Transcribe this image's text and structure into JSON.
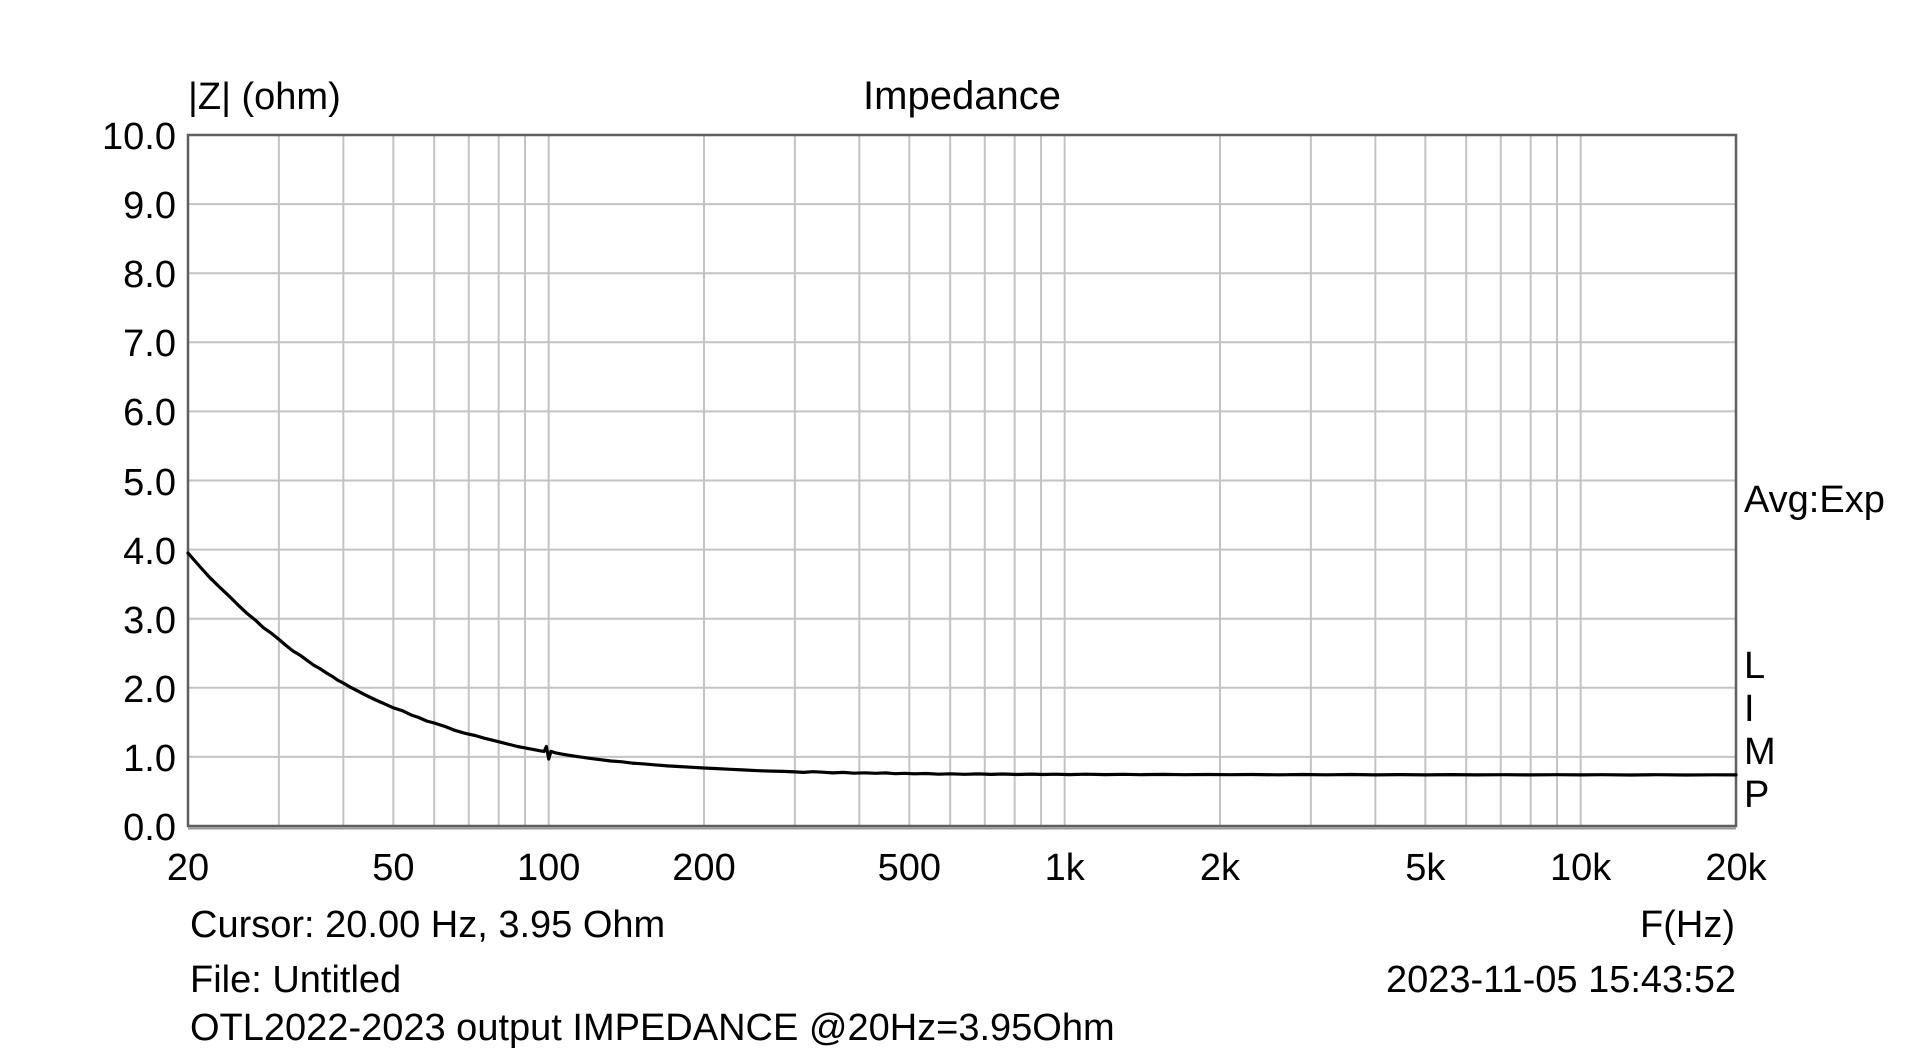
{
  "header": {
    "y_axis_unit": "|Z| (ohm)",
    "title": "Impedance"
  },
  "side_panel": {
    "avg_mode": "Avg:Exp",
    "app_name_letters": [
      "L",
      "I",
      "M",
      "P"
    ]
  },
  "footer": {
    "cursor_readout": "Cursor: 20.00 Hz, 3.95 Ohm",
    "x_axis_unit": "F(Hz)",
    "file_label": "File: Untitled",
    "timestamp": "2023-11-05 15:43:52",
    "comment": "OTL2022-2023 output IMPEDANCE @20Hz=3.95Ohm"
  },
  "colors": {
    "background": "#ffffff",
    "text": "#000000",
    "grid": "#c3c3c3",
    "plot_border": "#5f5f5f",
    "curve": "#000000"
  },
  "chart_data": {
    "type": "line",
    "title": "Impedance",
    "xlabel": "F(Hz)",
    "ylabel": "|Z| (ohm)",
    "xscale": "log",
    "xlim": [
      20,
      20000
    ],
    "ylim": [
      0,
      10
    ],
    "grid": true,
    "legend": "none",
    "x_ticks": [
      {
        "value": 20,
        "label": "20"
      },
      {
        "value": 50,
        "label": "50"
      },
      {
        "value": 100,
        "label": "100"
      },
      {
        "value": 200,
        "label": "200"
      },
      {
        "value": 500,
        "label": "500"
      },
      {
        "value": 1000,
        "label": "1k"
      },
      {
        "value": 2000,
        "label": "2k"
      },
      {
        "value": 5000,
        "label": "5k"
      },
      {
        "value": 10000,
        "label": "10k"
      },
      {
        "value": 20000,
        "label": "20k"
      }
    ],
    "y_ticks": [
      {
        "value": 10,
        "label": "10.0"
      },
      {
        "value": 9,
        "label": "9.0"
      },
      {
        "value": 8,
        "label": "8.0"
      },
      {
        "value": 7,
        "label": "7.0"
      },
      {
        "value": 6,
        "label": "6.0"
      },
      {
        "value": 5,
        "label": "5.0"
      },
      {
        "value": 4,
        "label": "4.0"
      },
      {
        "value": 3,
        "label": "3.0"
      },
      {
        "value": 2,
        "label": "2.0"
      },
      {
        "value": 1,
        "label": "1.0"
      },
      {
        "value": 0,
        "label": "0.0"
      }
    ],
    "annotations": [
      {
        "text": "notch artifact at 100 Hz dipping to ~0.97 ohm"
      },
      {
        "text": "curve starts at 20 Hz / 3.95 ohm and flattens near 0.74 ohm above 500 Hz"
      }
    ],
    "series": [
      {
        "name": "Impedance magnitude |Z|",
        "points": [
          [
            20,
            3.95
          ],
          [
            21,
            3.77
          ],
          [
            22,
            3.6
          ],
          [
            23,
            3.46
          ],
          [
            24,
            3.33
          ],
          [
            25,
            3.2
          ],
          [
            26,
            3.08
          ],
          [
            27,
            2.98
          ],
          [
            28,
            2.87
          ],
          [
            29,
            2.79
          ],
          [
            30,
            2.7
          ],
          [
            31,
            2.61
          ],
          [
            32,
            2.53
          ],
          [
            33,
            2.47
          ],
          [
            34,
            2.4
          ],
          [
            35,
            2.33
          ],
          [
            36,
            2.28
          ],
          [
            37,
            2.22
          ],
          [
            38,
            2.17
          ],
          [
            39,
            2.11
          ],
          [
            40,
            2.07
          ],
          [
            41,
            2.02
          ],
          [
            42,
            1.98
          ],
          [
            44,
            1.9
          ],
          [
            46,
            1.83
          ],
          [
            48,
            1.77
          ],
          [
            50,
            1.71
          ],
          [
            52,
            1.67
          ],
          [
            54,
            1.61
          ],
          [
            56,
            1.57
          ],
          [
            58,
            1.52
          ],
          [
            60,
            1.49
          ],
          [
            63,
            1.44
          ],
          [
            66,
            1.38
          ],
          [
            69,
            1.34
          ],
          [
            72,
            1.31
          ],
          [
            75,
            1.27
          ],
          [
            78,
            1.24
          ],
          [
            81,
            1.21
          ],
          [
            84,
            1.18
          ],
          [
            87,
            1.15
          ],
          [
            90,
            1.13
          ],
          [
            93,
            1.11
          ],
          [
            96,
            1.09
          ],
          [
            98,
            1.08
          ],
          [
            99,
            1.15
          ],
          [
            100,
            0.97
          ],
          [
            101,
            1.08
          ],
          [
            103,
            1.06
          ],
          [
            106,
            1.04
          ],
          [
            110,
            1.02
          ],
          [
            115,
            1.0
          ],
          [
            120,
            0.98
          ],
          [
            126,
            0.96
          ],
          [
            132,
            0.94
          ],
          [
            138,
            0.93
          ],
          [
            145,
            0.91
          ],
          [
            152,
            0.9
          ],
          [
            160,
            0.885
          ],
          [
            170,
            0.87
          ],
          [
            180,
            0.86
          ],
          [
            190,
            0.85
          ],
          [
            200,
            0.84
          ],
          [
            212,
            0.83
          ],
          [
            225,
            0.82
          ],
          [
            240,
            0.81
          ],
          [
            255,
            0.8
          ],
          [
            270,
            0.795
          ],
          [
            285,
            0.79
          ],
          [
            300,
            0.783
          ],
          [
            312,
            0.775
          ],
          [
            325,
            0.786
          ],
          [
            340,
            0.778
          ],
          [
            355,
            0.768
          ],
          [
            372,
            0.776
          ],
          [
            390,
            0.764
          ],
          [
            410,
            0.77
          ],
          [
            430,
            0.762
          ],
          [
            450,
            0.768
          ],
          [
            470,
            0.757
          ],
          [
            490,
            0.763
          ],
          [
            510,
            0.755
          ],
          [
            540,
            0.76
          ],
          [
            570,
            0.75
          ],
          [
            600,
            0.756
          ],
          [
            640,
            0.748
          ],
          [
            680,
            0.754
          ],
          [
            720,
            0.747
          ],
          [
            760,
            0.752
          ],
          [
            810,
            0.746
          ],
          [
            860,
            0.751
          ],
          [
            910,
            0.745
          ],
          [
            960,
            0.75
          ],
          [
            1020,
            0.744
          ],
          [
            1100,
            0.749
          ],
          [
            1200,
            0.744
          ],
          [
            1300,
            0.748
          ],
          [
            1400,
            0.743
          ],
          [
            1550,
            0.747
          ],
          [
            1700,
            0.742
          ],
          [
            1900,
            0.746
          ],
          [
            2100,
            0.742
          ],
          [
            2300,
            0.746
          ],
          [
            2600,
            0.741
          ],
          [
            2900,
            0.745
          ],
          [
            3200,
            0.741
          ],
          [
            3600,
            0.745
          ],
          [
            4000,
            0.74
          ],
          [
            4500,
            0.744
          ],
          [
            5000,
            0.74
          ],
          [
            5600,
            0.744
          ],
          [
            6300,
            0.739
          ],
          [
            7100,
            0.743
          ],
          [
            8000,
            0.739
          ],
          [
            9000,
            0.743
          ],
          [
            10000,
            0.739
          ],
          [
            11000,
            0.743
          ],
          [
            12500,
            0.738
          ],
          [
            14000,
            0.742
          ],
          [
            16000,
            0.738
          ],
          [
            18000,
            0.741
          ],
          [
            20000,
            0.74
          ]
        ]
      }
    ]
  }
}
